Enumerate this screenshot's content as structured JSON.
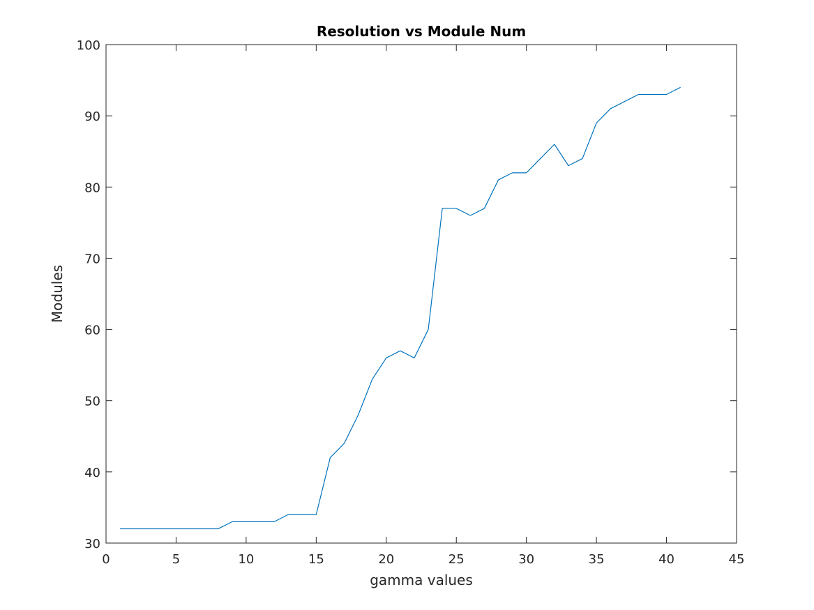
{
  "chart_data": {
    "type": "line",
    "title": "Resolution vs Module Num",
    "xlabel": "gamma values",
    "ylabel": "Modules",
    "xlim": [
      0,
      45
    ],
    "ylim": [
      30,
      100
    ],
    "xticks": [
      0,
      5,
      10,
      15,
      20,
      25,
      30,
      35,
      40,
      45
    ],
    "yticks": [
      30,
      40,
      50,
      60,
      70,
      80,
      90,
      100
    ],
    "grid": false,
    "legend": "none",
    "series": [
      {
        "color": "#0072BD",
        "x": [
          1,
          2,
          3,
          4,
          5,
          6,
          7,
          8,
          9,
          10,
          11,
          12,
          13,
          14,
          15,
          16,
          17,
          18,
          19,
          20,
          21,
          22,
          23,
          24,
          25,
          26,
          27,
          28,
          29,
          30,
          31,
          32,
          33,
          34,
          35,
          36,
          37,
          38,
          39,
          40,
          41
        ],
        "y": [
          32,
          32,
          32,
          32,
          32,
          32,
          32,
          32,
          33,
          33,
          33,
          33,
          34,
          34,
          34,
          42,
          44,
          48,
          53,
          56,
          57,
          56,
          60,
          77,
          77,
          76,
          77,
          81,
          82,
          82,
          84,
          86,
          83,
          84,
          89,
          91,
          92,
          93,
          93,
          93,
          94
        ]
      }
    ]
  }
}
